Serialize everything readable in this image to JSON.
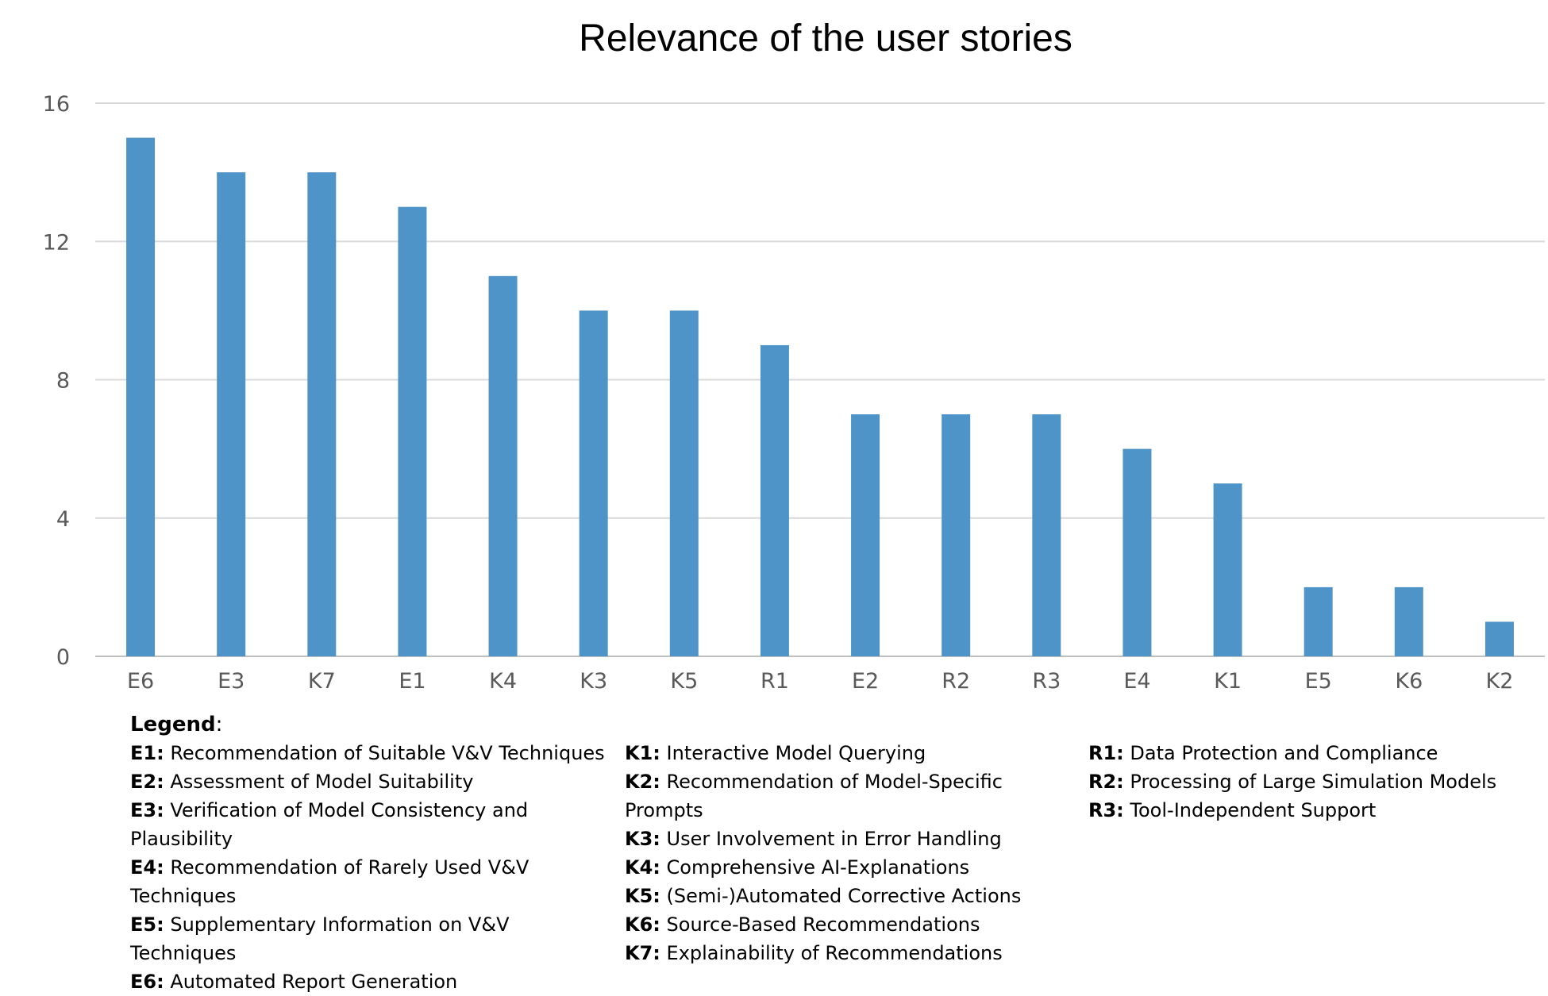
{
  "chart_data": {
    "type": "bar",
    "title": "Relevance of the user stories",
    "xlabel": "",
    "ylabel": "",
    "categories": [
      "E6",
      "E3",
      "K7",
      "E1",
      "K4",
      "K3",
      "K5",
      "R1",
      "E2",
      "R2",
      "R3",
      "E4",
      "K1",
      "E5",
      "K6",
      "K2"
    ],
    "values": [
      15,
      14,
      14,
      13,
      11,
      10,
      10,
      9,
      7,
      7,
      7,
      6,
      5,
      2,
      2,
      1
    ],
    "ylim": [
      0,
      16
    ],
    "yticks": [
      0,
      4,
      8,
      12,
      16
    ],
    "grid": true,
    "bar_color": "#4f94c8"
  },
  "legend": {
    "title": "Legend",
    "title_suffix": ":",
    "columns": [
      [
        {
          "code": "E1:",
          "text": "Recommendation of Suitable V&V Techniques"
        },
        {
          "code": "E2:",
          "text": "Assessment of Model Suitability"
        },
        {
          "code": "E3:",
          "text": "Verification of Model Consistency and Plausibility"
        },
        {
          "code": "E4:",
          "text": "Recommendation of Rarely Used V&V Techniques"
        },
        {
          "code": "E5:",
          "text": "Supplementary Information on V&V Techniques"
        },
        {
          "code": "E6:",
          "text": "Automated Report Generation"
        }
      ],
      [
        {
          "code": "K1:",
          "text": "Interactive Model Querying"
        },
        {
          "code": "K2:",
          "text": "Recommendation of Model-Specific Prompts"
        },
        {
          "code": "K3:",
          "text": "User Involvement in Error Handling"
        },
        {
          "code": "K4:",
          "text": "Comprehensive AI-Explanations"
        },
        {
          "code": "K5:",
          "text": "(Semi-)Automated Corrective Actions"
        },
        {
          "code": "K6:",
          "text": "Source-Based Recommendations"
        },
        {
          "code": "K7:",
          "text": "Explainability of Recommendations"
        }
      ],
      [
        {
          "code": "R1:",
          "text": "Data Protection and Compliance"
        },
        {
          "code": "R2:",
          "text": "Processing of Large Simulation Models"
        },
        {
          "code": "R3:",
          "text": "Tool-Independent Support"
        }
      ]
    ]
  }
}
